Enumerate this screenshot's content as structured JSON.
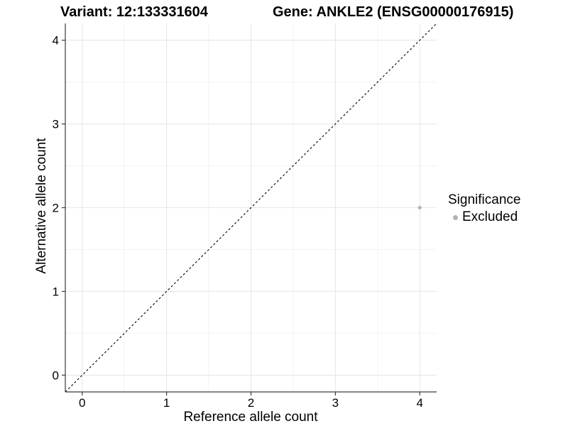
{
  "title": {
    "variant": "Variant: 12:133331604",
    "gene": "Gene: ANKLE2 (ENSG00000176915)"
  },
  "axes": {
    "x": {
      "label": "Reference allele count"
    },
    "y": {
      "label": "Alternative allele count"
    }
  },
  "legend": {
    "title": "Significance",
    "items": [
      {
        "label": "Excluded",
        "color": "#b3b3b3"
      }
    ]
  },
  "colors": {
    "background": "#ffffff",
    "grid_major": "#e7e7e7",
    "grid_minor": "#f2f2f2",
    "axis_line": "#3a3a3a",
    "tick_text": "#000000",
    "reference_line": "#000000",
    "point_excluded": "#b3b3b3"
  },
  "chart_data": {
    "type": "scatter",
    "title": "Variant: 12:133331604   Gene: ANKLE2 (ENSG00000176915)",
    "xlabel": "Reference allele count",
    "ylabel": "Alternative allele count",
    "xlim": [
      -0.2,
      4.2
    ],
    "ylim": [
      -0.2,
      4.2
    ],
    "x_ticks": [
      0,
      1,
      2,
      3,
      4
    ],
    "y_ticks": [
      0,
      1,
      2,
      3,
      4
    ],
    "minor_grid_step": 0.5,
    "grid": true,
    "legend_position": "right",
    "legend_title": "Significance",
    "series": [
      {
        "name": "Excluded",
        "color": "#b3b3b3",
        "points": [
          {
            "x": 4,
            "y": 2
          }
        ]
      }
    ],
    "reference_line": {
      "kind": "identity y=x",
      "style": "dashed",
      "color": "#000000"
    }
  }
}
